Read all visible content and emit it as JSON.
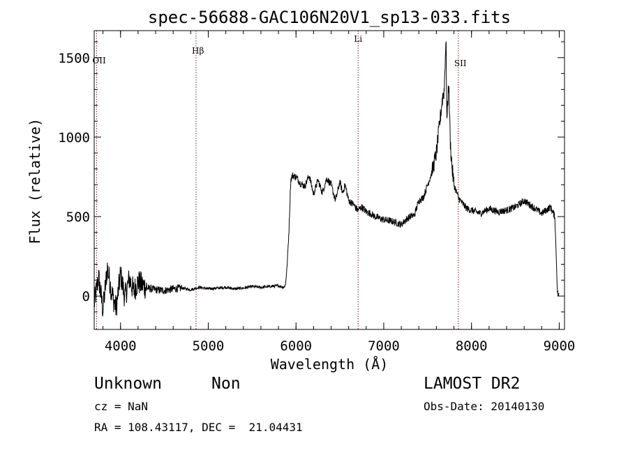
{
  "chart_data": {
    "type": "line",
    "title": "spec-56688-GAC106N20V1_sp13-033.fits",
    "xlabel": "Wavelength (Å)",
    "ylabel": "Flux (relative)",
    "xlim": [
      3700,
      9060
    ],
    "ylim": [
      -210,
      1670
    ],
    "xticks": [
      "4000",
      "5000",
      "6000",
      "7000",
      "8000",
      "9000"
    ],
    "yticks": [
      "0",
      "500",
      "1000",
      "1500"
    ],
    "grid": false,
    "line_color": "#000000",
    "annotation_color": "#8b1a1a",
    "lines": [
      {
        "label": "OII",
        "x": 3727
      },
      {
        "label": "Hβ",
        "x": 4861
      },
      {
        "label": "Li",
        "x": 6708
      },
      {
        "label": "SII",
        "x": 7850
      }
    ],
    "series": [
      {
        "x": [
          3700,
          3750,
          3800,
          3850,
          3900,
          3950,
          4000,
          4050,
          4100,
          4150,
          4200,
          4300,
          4400,
          4500,
          4600,
          4700,
          4800,
          4900,
          5000,
          5100,
          5200,
          5300,
          5400,
          5500,
          5600,
          5700,
          5800,
          5860,
          5880,
          5900,
          5920,
          5940,
          5960,
          6000,
          6050,
          6100,
          6150,
          6200,
          6250,
          6300,
          6350,
          6400,
          6450,
          6500,
          6530,
          6560,
          6600,
          6650,
          6700,
          6750,
          6800,
          6850,
          6900,
          6950,
          7000,
          7100,
          7200,
          7250,
          7300,
          7350,
          7400,
          7450,
          7500,
          7550,
          7600,
          7630,
          7650,
          7670,
          7690,
          7700,
          7710,
          7720,
          7740,
          7760,
          7780,
          7800,
          7850,
          7900,
          7950,
          8000,
          8100,
          8200,
          8300,
          8400,
          8500,
          8600,
          8650,
          8700,
          8800,
          8850,
          8900,
          8950,
          8980,
          9000
        ],
        "values": [
          -50,
          120,
          -90,
          180,
          20,
          -80,
          140,
          -10,
          110,
          30,
          90,
          50,
          40,
          35,
          45,
          50,
          40,
          55,
          45,
          50,
          55,
          45,
          50,
          60,
          55,
          60,
          65,
          55,
          70,
          200,
          420,
          730,
          760,
          750,
          710,
          690,
          760,
          640,
          730,
          650,
          740,
          700,
          600,
          720,
          650,
          700,
          600,
          580,
          540,
          560,
          530,
          520,
          500,
          490,
          480,
          470,
          450,
          480,
          500,
          510,
          600,
          620,
          700,
          780,
          900,
          1050,
          1150,
          1250,
          1300,
          1500,
          1600,
          1100,
          1350,
          950,
          800,
          700,
          620,
          580,
          550,
          540,
          520,
          550,
          530,
          540,
          560,
          600,
          580,
          560,
          520,
          540,
          560,
          500,
          20,
          0
        ]
      }
    ]
  },
  "info": {
    "class_label": "Unknown",
    "subclass_label": "Non",
    "survey_label": "LAMOST DR2",
    "cz_text": "cz = NaN",
    "obs_date_text": "Obs-Date: 20140130",
    "radec_text": "RA = 108.43117, DEC =  21.04431"
  }
}
